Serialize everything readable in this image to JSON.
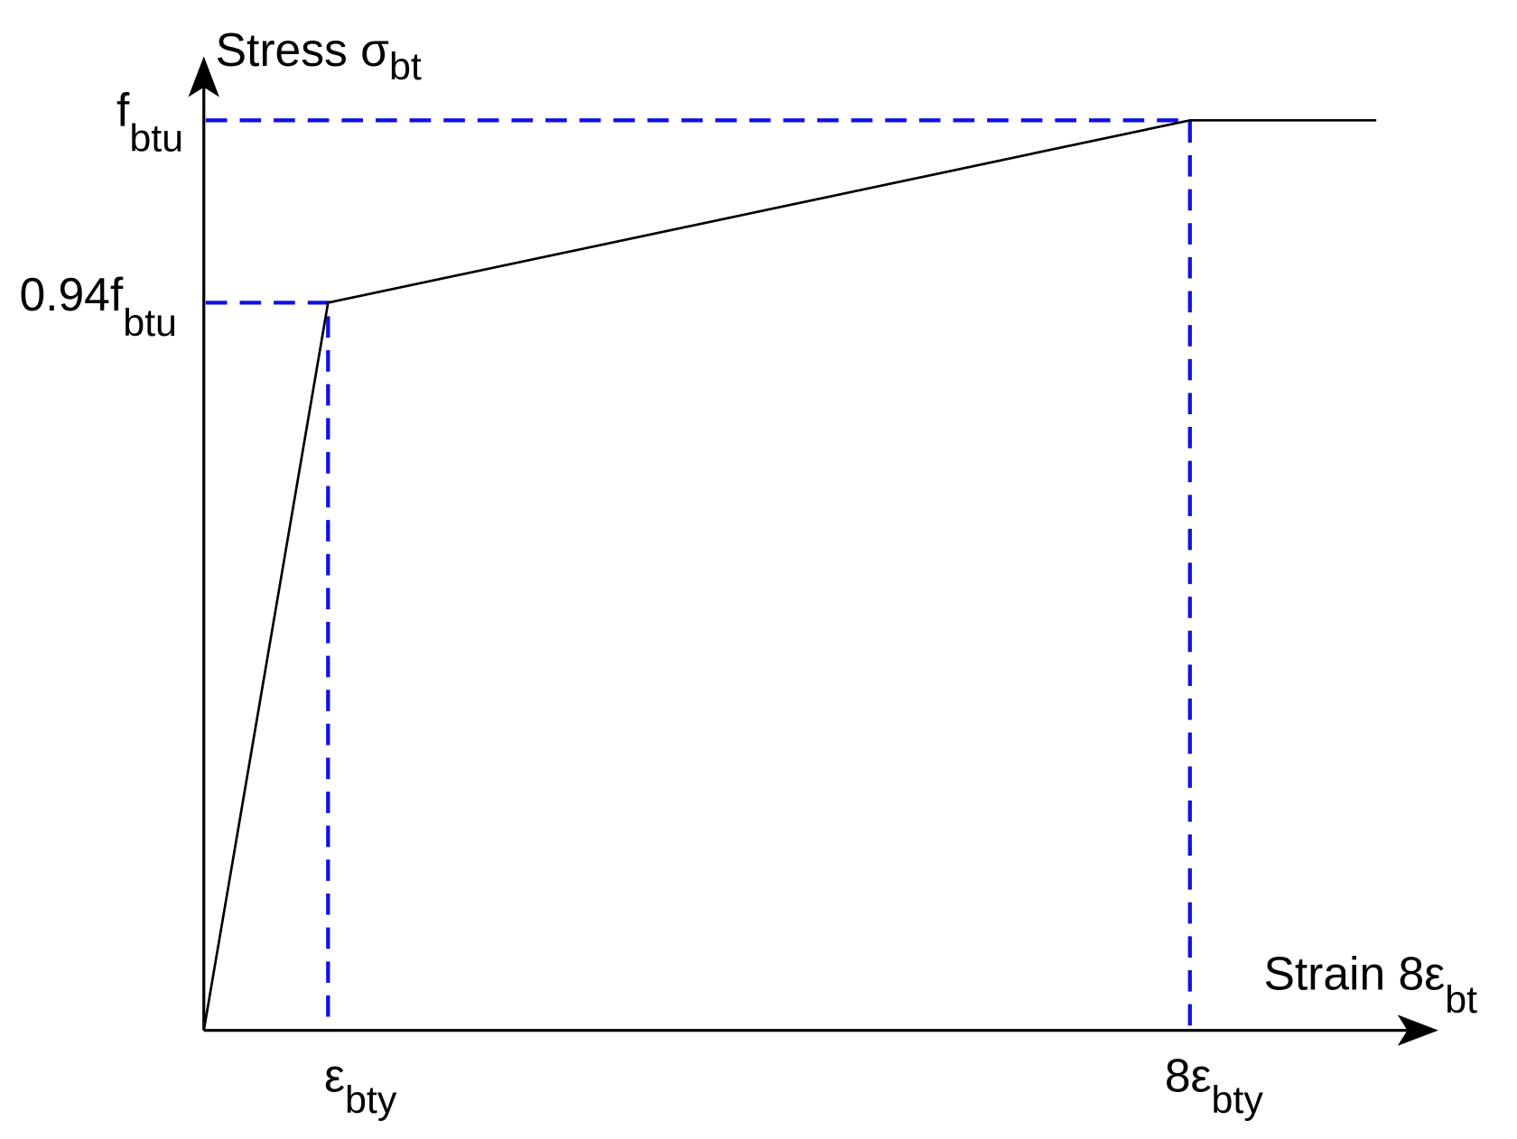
{
  "y_axis_label": {
    "main": "Stress σ",
    "sub": "bt"
  },
  "x_axis_label": {
    "main": "Strain 8ε",
    "sub": "bt"
  },
  "y_labels": [
    {
      "main": "f",
      "sub": "btu"
    },
    {
      "main": "0.94f",
      "sub": "btu"
    }
  ],
  "x_labels": [
    {
      "main": "ε",
      "sub": "bty"
    },
    {
      "main": "8ε",
      "sub": "bty"
    }
  ]
}
